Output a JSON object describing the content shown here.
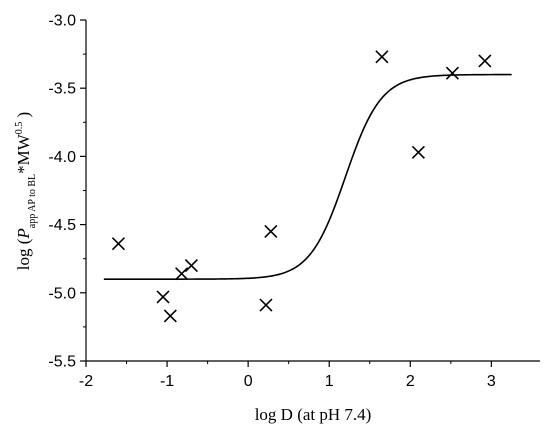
{
  "chart_data": {
    "type": "scatter",
    "title": "",
    "xlabel": "log D (at pH 7.4)",
    "ylabel": {
      "prefix": "log (",
      "symbol": "P",
      "subscript": "app AP to BL",
      "mid": "*MW",
      "superscript": "0.5",
      "suffix": ")"
    },
    "xlim": [
      -2,
      3.6
    ],
    "ylim": [
      -5.5,
      -3.0
    ],
    "x_ticks": [
      "-2",
      "-1",
      "0",
      "1",
      "2",
      "3"
    ],
    "x_tick_values": [
      -2,
      -1,
      0,
      1,
      2,
      3
    ],
    "y_ticks": [
      "-3.0",
      "-3.5",
      "-4.0",
      "-4.5",
      "-5.0",
      "-5.5"
    ],
    "y_tick_values": [
      -3.0,
      -3.5,
      -4.0,
      -4.5,
      -5.0,
      -5.5
    ],
    "grid": false,
    "series": [
      {
        "marker": "x",
        "points": [
          {
            "x": -1.6,
            "y": -4.64
          },
          {
            "x": -1.05,
            "y": -5.03
          },
          {
            "x": -0.96,
            "y": -5.17
          },
          {
            "x": -0.82,
            "y": -4.86
          },
          {
            "x": -0.7,
            "y": -4.8
          },
          {
            "x": 0.22,
            "y": -5.09
          },
          {
            "x": 0.28,
            "y": -4.55
          },
          {
            "x": 1.65,
            "y": -3.27
          },
          {
            "x": 2.1,
            "y": -3.97
          },
          {
            "x": 2.52,
            "y": -3.39
          },
          {
            "x": 2.92,
            "y": -3.3
          }
        ]
      },
      {
        "type": "sigmoid-fit",
        "bottom": -4.9,
        "top": -3.4,
        "x50": 1.2,
        "slope": 0.22,
        "x_range": [
          -1.78,
          3.25
        ]
      }
    ]
  }
}
